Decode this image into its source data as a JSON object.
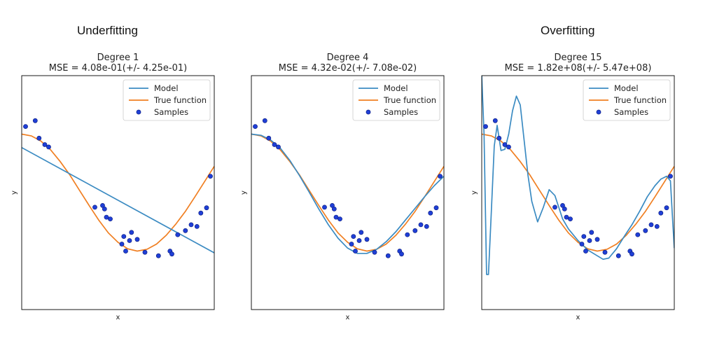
{
  "headings": {
    "left": "Underfitting",
    "right": "Overfitting"
  },
  "colors": {
    "model": "#3b8bc2",
    "true_function": "#f07f22",
    "samples_face": "#1f3fd6",
    "samples_edge": "#0a1a7a"
  },
  "chart_data": [
    {
      "type": "line",
      "title": "Degree 1",
      "subtitle": "MSE = 4.08e-01(+/- 4.25e-01)",
      "xlabel": "x",
      "ylabel": "y",
      "xlim": [
        0,
        1
      ],
      "ylim": [
        -2,
        2
      ],
      "grid": false,
      "legend_position": "top-right",
      "legend": [
        "Model",
        "True function",
        "Samples"
      ],
      "model": {
        "x": [
          0,
          1
        ],
        "y": [
          0.77,
          -1.03
        ]
      }
    },
    {
      "type": "line",
      "title": "Degree 4",
      "subtitle": "MSE = 4.32e-02(+/- 7.08e-02)",
      "xlabel": "x",
      "ylabel": "y",
      "xlim": [
        0,
        1
      ],
      "ylim": [
        -2,
        2
      ],
      "grid": false,
      "legend_position": "top-right",
      "legend": [
        "Model",
        "True function",
        "Samples"
      ],
      "model": {
        "x": [
          0,
          0.05,
          0.1,
          0.15,
          0.2,
          0.25,
          0.3,
          0.35,
          0.4,
          0.45,
          0.5,
          0.55,
          0.6,
          0.65,
          0.7,
          0.75,
          0.8,
          0.85,
          0.9,
          0.95,
          1.0
        ],
        "y": [
          1.0,
          0.98,
          0.9,
          0.76,
          0.55,
          0.29,
          0.01,
          -0.28,
          -0.55,
          -0.78,
          -0.95,
          -1.04,
          -1.04,
          -0.97,
          -0.84,
          -0.67,
          -0.47,
          -0.27,
          -0.07,
          0.12,
          0.28
        ]
      }
    },
    {
      "type": "line",
      "title": "Degree 15",
      "subtitle": "MSE = 1.82e+08(+/- 5.47e+08)",
      "xlabel": "x",
      "ylabel": "y",
      "xlim": [
        0,
        1
      ],
      "ylim": [
        -2,
        2
      ],
      "grid": false,
      "legend_position": "top-right",
      "legend": [
        "Model",
        "True function",
        "Samples"
      ],
      "model": {
        "x": [
          0,
          0.012,
          0.025,
          0.035,
          0.05,
          0.065,
          0.08,
          0.1,
          0.12,
          0.14,
          0.16,
          0.18,
          0.2,
          0.22,
          0.24,
          0.26,
          0.29,
          0.32,
          0.35,
          0.38,
          0.4,
          0.42,
          0.45,
          0.5,
          0.55,
          0.6,
          0.63,
          0.66,
          0.7,
          0.74,
          0.78,
          0.82,
          0.86,
          0.9,
          0.93,
          0.96,
          0.98,
          0.99,
          1.0
        ],
        "y": [
          2.0,
          1.0,
          -1.4,
          -1.4,
          -0.3,
          0.8,
          1.15,
          0.72,
          0.74,
          1.0,
          1.4,
          1.65,
          1.5,
          0.9,
          0.3,
          -0.15,
          -0.5,
          -0.25,
          0.05,
          -0.05,
          -0.25,
          -0.45,
          -0.62,
          -0.82,
          -0.98,
          -1.08,
          -1.14,
          -1.12,
          -0.96,
          -0.75,
          -0.55,
          -0.32,
          -0.07,
          0.12,
          0.23,
          0.28,
          0.2,
          -0.4,
          -0.95
        ]
      }
    }
  ],
  "true_function": {
    "x": [
      0,
      0.05,
      0.1,
      0.15,
      0.2,
      0.25,
      0.3,
      0.35,
      0.4,
      0.45,
      0.5,
      0.55,
      0.6,
      0.65,
      0.7,
      0.75,
      0.8,
      0.85,
      0.9,
      0.95,
      1.0
    ],
    "y": [
      1.0,
      0.97,
      0.88,
      0.73,
      0.53,
      0.3,
      0.04,
      -0.22,
      -0.47,
      -0.69,
      -0.85,
      -0.96,
      -1.0,
      -0.97,
      -0.88,
      -0.73,
      -0.54,
      -0.32,
      -0.07,
      0.19,
      0.45
    ]
  },
  "samples": {
    "x": [
      0.02,
      0.07,
      0.09,
      0.12,
      0.14,
      0.38,
      0.42,
      0.43,
      0.44,
      0.46,
      0.52,
      0.53,
      0.54,
      0.56,
      0.57,
      0.6,
      0.64,
      0.71,
      0.77,
      0.78,
      0.81,
      0.85,
      0.88,
      0.91,
      0.93,
      0.96,
      0.98
    ],
    "y": [
      1.13,
      1.23,
      0.93,
      0.82,
      0.78,
      -0.25,
      -0.22,
      -0.28,
      -0.42,
      -0.45,
      -0.88,
      -0.75,
      -1.0,
      -0.82,
      -0.68,
      -0.8,
      -1.02,
      -1.08,
      -1.0,
      -1.05,
      -0.72,
      -0.65,
      -0.55,
      -0.58,
      -0.35,
      -0.26,
      0.28
    ]
  }
}
